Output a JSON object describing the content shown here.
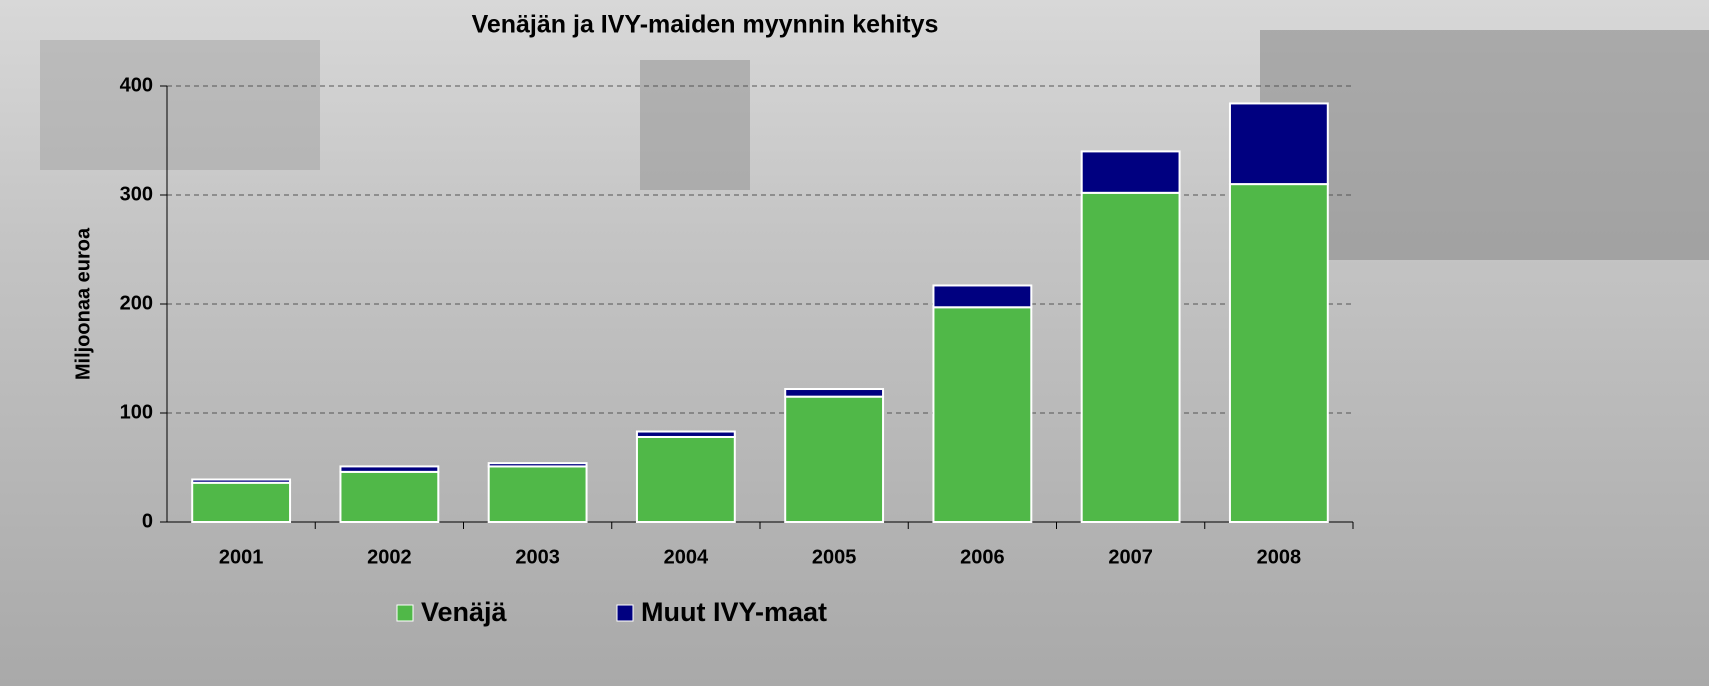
{
  "chart_data": {
    "type": "stacked_bar",
    "title": "Venäjän ja IVY-maiden myynnin kehitys",
    "y_label": "Miljoonaa euroa",
    "categories": [
      "2001",
      "2002",
      "2003",
      "2004",
      "2005",
      "2006",
      "2007",
      "2008"
    ],
    "series": [
      {
        "name": "Venäjä",
        "color": "#50b848",
        "values": [
          36,
          46,
          51,
          78,
          115,
          197,
          302,
          310
        ]
      },
      {
        "name": "Muut IVY-maat",
        "color": "#000080",
        "values": [
          3,
          5,
          3,
          5,
          7,
          20,
          38,
          74
        ]
      }
    ],
    "ylim": [
      0,
      400
    ],
    "yticks": [
      0,
      100,
      200,
      300,
      400
    ],
    "grid": true,
    "legend": "bottom"
  }
}
